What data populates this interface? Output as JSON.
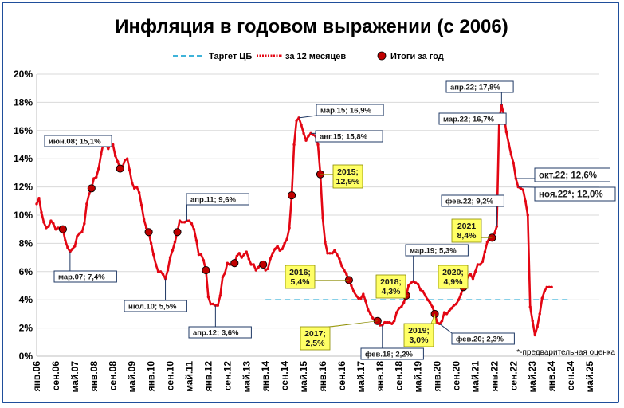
{
  "chart_data": {
    "type": "line",
    "title": "Инфляция в годовом выражении (с 2006)",
    "legend": {
      "placement": "top",
      "items": [
        {
          "label": "Таргет ЦБ",
          "style": "dashed",
          "color": "#3fb3d9"
        },
        {
          "label": "за 12 месяцев",
          "style": "line-dot",
          "color": "#e30613"
        },
        {
          "label": "Итоги за год",
          "style": "marker",
          "color": "#c00000"
        }
      ]
    },
    "y_ticks": [
      "0%",
      "2%",
      "4%",
      "6%",
      "8%",
      "10%",
      "12%",
      "14%",
      "16%",
      "18%",
      "20%"
    ],
    "ylim": [
      0,
      20
    ],
    "grid": true,
    "x_ticks": [
      {
        "label": "янв.06",
        "m": 0
      },
      {
        "label": "сен.06",
        "m": 8
      },
      {
        "label": "май.07",
        "m": 16
      },
      {
        "label": "янв.08",
        "m": 24
      },
      {
        "label": "сен.08",
        "m": 32
      },
      {
        "label": "май.09",
        "m": 40
      },
      {
        "label": "янв.10",
        "m": 48
      },
      {
        "label": "сен.10",
        "m": 56
      },
      {
        "label": "май.11",
        "m": 64
      },
      {
        "label": "янв.12",
        "m": 72
      },
      {
        "label": "сен.12",
        "m": 80
      },
      {
        "label": "май.13",
        "m": 88
      },
      {
        "label": "янв.14",
        "m": 96
      },
      {
        "label": "сен.14",
        "m": 104
      },
      {
        "label": "май.15",
        "m": 112
      },
      {
        "label": "янв.16",
        "m": 120
      },
      {
        "label": "сен.16",
        "m": 128
      },
      {
        "label": "май.17",
        "m": 136
      },
      {
        "label": "янв.18",
        "m": 144
      },
      {
        "label": "сен.18",
        "m": 152
      },
      {
        "label": "май.19",
        "m": 160
      },
      {
        "label": "янв.20",
        "m": 168
      },
      {
        "label": "сен.20",
        "m": 176
      },
      {
        "label": "май.21",
        "m": 184
      },
      {
        "label": "янв.22",
        "m": 192
      },
      {
        "label": "сен.22",
        "m": 200
      },
      {
        "label": "май.23",
        "m": 208
      },
      {
        "label": "янв.24",
        "m": 216
      },
      {
        "label": "сен.24",
        "m": 224
      },
      {
        "label": "май.25",
        "m": 232
      }
    ],
    "target": {
      "value": 4,
      "from_m": 96,
      "to_m": 224
    },
    "series_monthly": {
      "name": "за 12 месяцев",
      "points": [
        [
          0,
          10.8
        ],
        [
          1,
          11.2
        ],
        [
          2,
          10.2
        ],
        [
          3,
          9.5
        ],
        [
          4,
          9.1
        ],
        [
          5,
          9.2
        ],
        [
          6,
          9.6
        ],
        [
          7,
          9.4
        ],
        [
          8,
          9.0
        ],
        [
          9,
          9.1
        ],
        [
          10,
          9.1
        ],
        [
          11,
          9.0
        ],
        [
          12,
          8.2
        ],
        [
          13,
          7.7
        ],
        [
          14,
          7.4
        ],
        [
          15,
          7.6
        ],
        [
          16,
          7.8
        ],
        [
          17,
          8.5
        ],
        [
          18,
          8.7
        ],
        [
          19,
          8.8
        ],
        [
          20,
          9.4
        ],
        [
          21,
          10.8
        ],
        [
          22,
          11.5
        ],
        [
          23,
          11.9
        ],
        [
          24,
          12.6
        ],
        [
          25,
          12.7
        ],
        [
          26,
          13.3
        ],
        [
          27,
          14.3
        ],
        [
          28,
          15.1
        ],
        [
          29,
          15.1
        ],
        [
          30,
          14.7
        ],
        [
          31,
          15.0
        ],
        [
          32,
          15.0
        ],
        [
          33,
          14.2
        ],
        [
          34,
          13.8
        ],
        [
          35,
          13.3
        ],
        [
          36,
          13.4
        ],
        [
          37,
          13.9
        ],
        [
          38,
          14.0
        ],
        [
          39,
          13.2
        ],
        [
          40,
          12.3
        ],
        [
          41,
          11.9
        ],
        [
          42,
          12.0
        ],
        [
          43,
          11.6
        ],
        [
          44,
          10.7
        ],
        [
          45,
          9.7
        ],
        [
          46,
          9.1
        ],
        [
          47,
          8.8
        ],
        [
          48,
          8.0
        ],
        [
          49,
          7.2
        ],
        [
          50,
          6.5
        ],
        [
          51,
          6.0
        ],
        [
          52,
          6.0
        ],
        [
          53,
          5.8
        ],
        [
          54,
          5.5
        ],
        [
          55,
          6.1
        ],
        [
          56,
          7.0
        ],
        [
          57,
          7.5
        ],
        [
          58,
          8.1
        ],
        [
          59,
          8.8
        ],
        [
          60,
          9.6
        ],
        [
          61,
          9.5
        ],
        [
          62,
          9.5
        ],
        [
          63,
          9.6
        ],
        [
          64,
          9.6
        ],
        [
          65,
          9.4
        ],
        [
          66,
          9.0
        ],
        [
          67,
          8.2
        ],
        [
          68,
          7.2
        ],
        [
          69,
          7.2
        ],
        [
          70,
          6.8
        ],
        [
          71,
          6.1
        ],
        [
          72,
          4.2
        ],
        [
          73,
          3.7
        ],
        [
          74,
          3.7
        ],
        [
          75,
          3.6
        ],
        [
          76,
          3.6
        ],
        [
          77,
          4.3
        ],
        [
          78,
          5.6
        ],
        [
          79,
          5.9
        ],
        [
          80,
          6.6
        ],
        [
          81,
          6.5
        ],
        [
          82,
          6.5
        ],
        [
          83,
          6.6
        ],
        [
          84,
          7.1
        ],
        [
          85,
          7.3
        ],
        [
          86,
          7.0
        ],
        [
          87,
          7.2
        ],
        [
          88,
          7.4
        ],
        [
          89,
          6.9
        ],
        [
          90,
          6.5
        ],
        [
          91,
          6.5
        ],
        [
          92,
          6.1
        ],
        [
          93,
          6.3
        ],
        [
          94,
          6.5
        ],
        [
          95,
          6.5
        ],
        [
          96,
          6.1
        ],
        [
          97,
          6.2
        ],
        [
          98,
          6.9
        ],
        [
          99,
          7.3
        ],
        [
          100,
          7.6
        ],
        [
          101,
          7.8
        ],
        [
          102,
          7.5
        ],
        [
          103,
          7.6
        ],
        [
          104,
          8.0
        ],
        [
          105,
          8.3
        ],
        [
          106,
          9.1
        ],
        [
          107,
          11.4
        ],
        [
          108,
          15.0
        ],
        [
          109,
          16.7
        ],
        [
          110,
          16.9
        ],
        [
          111,
          16.4
        ],
        [
          112,
          15.8
        ],
        [
          113,
          15.3
        ],
        [
          114,
          15.6
        ],
        [
          115,
          15.8
        ],
        [
          116,
          15.7
        ],
        [
          117,
          15.6
        ],
        [
          118,
          15.0
        ],
        [
          119,
          12.9
        ],
        [
          120,
          9.8
        ],
        [
          121,
          8.1
        ],
        [
          122,
          7.3
        ],
        [
          123,
          7.3
        ],
        [
          124,
          7.3
        ],
        [
          125,
          7.5
        ],
        [
          126,
          7.2
        ],
        [
          127,
          6.9
        ],
        [
          128,
          6.4
        ],
        [
          129,
          6.1
        ],
        [
          130,
          5.8
        ],
        [
          131,
          5.4
        ],
        [
          132,
          5.0
        ],
        [
          133,
          4.6
        ],
        [
          134,
          4.3
        ],
        [
          135,
          4.1
        ],
        [
          136,
          4.1
        ],
        [
          137,
          4.4
        ],
        [
          138,
          3.9
        ],
        [
          139,
          3.3
        ],
        [
          140,
          3.0
        ],
        [
          141,
          2.7
        ],
        [
          142,
          2.5
        ],
        [
          143,
          2.5
        ],
        [
          144,
          2.2
        ],
        [
          145,
          2.2
        ],
        [
          146,
          2.4
        ],
        [
          147,
          2.4
        ],
        [
          148,
          2.4
        ],
        [
          149,
          2.3
        ],
        [
          150,
          2.5
        ],
        [
          151,
          3.1
        ],
        [
          152,
          3.4
        ],
        [
          153,
          3.5
        ],
        [
          154,
          3.8
        ],
        [
          155,
          4.3
        ],
        [
          156,
          5.0
        ],
        [
          157,
          5.2
        ],
        [
          158,
          5.3
        ],
        [
          159,
          5.2
        ],
        [
          160,
          5.1
        ],
        [
          161,
          4.7
        ],
        [
          162,
          4.6
        ],
        [
          163,
          4.3
        ],
        [
          164,
          4.0
        ],
        [
          165,
          3.8
        ],
        [
          166,
          3.5
        ],
        [
          167,
          3.0
        ],
        [
          168,
          2.4
        ],
        [
          169,
          2.3
        ],
        [
          170,
          2.5
        ],
        [
          171,
          3.1
        ],
        [
          172,
          3.0
        ],
        [
          173,
          3.2
        ],
        [
          174,
          3.4
        ],
        [
          175,
          3.6
        ],
        [
          176,
          3.7
        ],
        [
          177,
          4.0
        ],
        [
          178,
          4.4
        ],
        [
          179,
          4.9
        ],
        [
          180,
          5.2
        ],
        [
          181,
          5.7
        ],
        [
          182,
          5.8
        ],
        [
          183,
          5.5
        ],
        [
          184,
          6.0
        ],
        [
          185,
          6.5
        ],
        [
          186,
          6.5
        ],
        [
          187,
          6.7
        ],
        [
          188,
          7.4
        ],
        [
          189,
          8.1
        ],
        [
          190,
          8.4
        ],
        [
          191,
          8.4
        ],
        [
          192,
          8.7
        ],
        [
          193,
          9.2
        ],
        [
          194,
          16.7
        ],
        [
          195,
          17.8
        ],
        [
          196,
          17.1
        ],
        [
          197,
          15.9
        ],
        [
          198,
          15.1
        ],
        [
          199,
          14.3
        ],
        [
          200,
          13.7
        ],
        [
          201,
          12.6
        ],
        [
          202,
          12.0
        ],
        [
          203,
          11.9
        ],
        [
          204,
          11.8
        ],
        [
          205,
          11.0
        ],
        [
          206,
          10.0
        ],
        [
          207,
          3.5
        ],
        [
          208,
          2.5
        ],
        [
          209,
          1.5
        ],
        [
          210,
          2.1
        ],
        [
          211,
          3.0
        ],
        [
          212,
          4.1
        ],
        [
          213,
          4.6
        ],
        [
          214,
          4.9
        ],
        [
          215,
          4.9
        ],
        [
          216,
          4.9
        ]
      ]
    },
    "series_annual": {
      "name": "Итоги за год",
      "points": [
        [
          11,
          9.0
        ],
        [
          23,
          11.9
        ],
        [
          35,
          13.3
        ],
        [
          47,
          8.8
        ],
        [
          59,
          8.8
        ],
        [
          71,
          6.1
        ],
        [
          83,
          6.6
        ],
        [
          95,
          6.5
        ],
        [
          107,
          11.4
        ],
        [
          119,
          12.9
        ],
        [
          131,
          5.4
        ],
        [
          143,
          2.5
        ],
        [
          155,
          4.3
        ],
        [
          167,
          3.0
        ],
        [
          179,
          4.9
        ],
        [
          191,
          8.4
        ]
      ]
    },
    "callouts": [
      {
        "text": "июн.08; 15,1%",
        "m": 29,
        "y": 15.1
      },
      {
        "text": "мар.07; 7,4%",
        "m": 14,
        "y": 7.4
      },
      {
        "text": "апр.11; 9,6%",
        "m": 63,
        "y": 9.6
      },
      {
        "text": "июл.10; 5,5%",
        "m": 54,
        "y": 5.5
      },
      {
        "text": "апр.12; 3,6%",
        "m": 75,
        "y": 3.6
      },
      {
        "text": "мар.15; 16,9%",
        "m": 110,
        "y": 16.9
      },
      {
        "text": "авг.15; 15,8%",
        "m": 115,
        "y": 15.8
      },
      {
        "text": "мар.19; 5,3%",
        "m": 158,
        "y": 5.3
      },
      {
        "text": "фев.18; 2,2%",
        "m": 145,
        "y": 2.2
      },
      {
        "text": "фев.20; 2,3%",
        "m": 169,
        "y": 2.3
      },
      {
        "text": "фев.22; 9,2%",
        "m": 193,
        "y": 9.2
      },
      {
        "text": "апр.22; 17,8%",
        "m": 195,
        "y": 17.8
      },
      {
        "text": "мар.22; 16,7%",
        "m": 194,
        "y": 16.7
      },
      {
        "text": "окт.22; 12,6%",
        "m": 201,
        "y": 12.6
      },
      {
        "text": "ноя.22*; 12,0%",
        "m": 202,
        "y": 12.0
      }
    ],
    "annual_labels": [
      {
        "text": [
          "2015;",
          "12,9%"
        ],
        "m": 119,
        "y": 12.9
      },
      {
        "text": [
          "2016;",
          "5,4%"
        ],
        "m": 131,
        "y": 5.4
      },
      {
        "text": [
          "2017;",
          "2,5%"
        ],
        "m": 143,
        "y": 2.5
      },
      {
        "text": [
          "2018;",
          "4,3%"
        ],
        "m": 155,
        "y": 4.3
      },
      {
        "text": [
          "2019;",
          "3,0%"
        ],
        "m": 167,
        "y": 3.0
      },
      {
        "text": [
          "2020;",
          "4,9%"
        ],
        "m": 179,
        "y": 4.9
      },
      {
        "text": [
          "2021",
          "8,4%"
        ],
        "m": 191,
        "y": 8.4
      }
    ],
    "note": "*-предварительная оценка"
  }
}
